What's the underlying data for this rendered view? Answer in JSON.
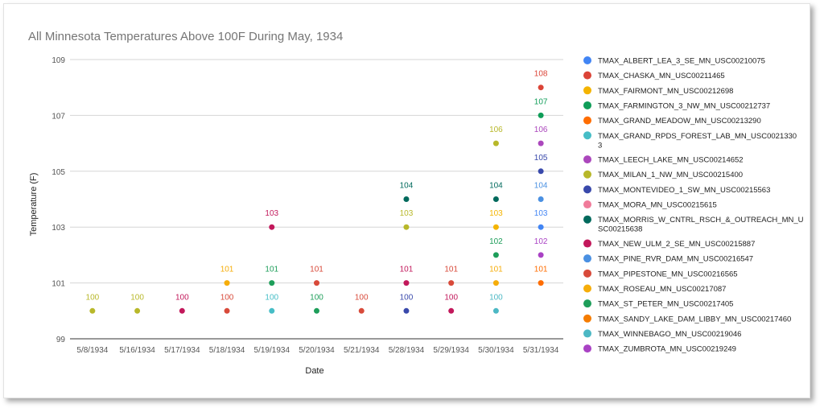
{
  "chart_data": {
    "type": "scatter",
    "title": "All Minnesota Temperatures Above 100F During  May, 1934",
    "xlabel": "Date",
    "ylabel": "Temperature (F)",
    "ylim": [
      99,
      109
    ],
    "yticks": [
      "99",
      "101",
      "103",
      "105",
      "107",
      "109"
    ],
    "grid": true,
    "legend_position": "right",
    "categories": [
      "5/8/1934",
      "5/16/1934",
      "5/17/1934",
      "5/18/1934",
      "5/19/1934",
      "5/20/1934",
      "5/21/1934",
      "5/28/1934",
      "5/29/1934",
      "5/30/1934",
      "5/31/1934"
    ],
    "series": [
      {
        "name": "TMAX_ALBERT_LEA_3_SE_MN_USC00210075",
        "color": "#4285f4",
        "points": [
          {
            "x": "5/31/1934",
            "y": 103
          }
        ]
      },
      {
        "name": "TMAX_CHASKA_MN_USC00211465",
        "color": "#db4437",
        "points": [
          {
            "x": "5/31/1934",
            "y": 108
          }
        ]
      },
      {
        "name": "TMAX_FAIRMONT_MN_USC00212698",
        "color": "#f4b400",
        "points": [
          {
            "x": "5/30/1934",
            "y": 103
          }
        ]
      },
      {
        "name": "TMAX_FARMINGTON_3_NW_MN_USC00212737",
        "color": "#0f9d58",
        "points": [
          {
            "x": "5/31/1934",
            "y": 107
          }
        ]
      },
      {
        "name": "TMAX_GRAND_MEADOW_MN_USC00213290",
        "color": "#ff6d00",
        "points": [
          {
            "x": "5/31/1934",
            "y": 101
          }
        ]
      },
      {
        "name": "TMAX_GRAND_RPDS_FOREST_LAB_MN_USC00213303",
        "color": "#46bdc6",
        "points": [
          {
            "x": "5/19/1934",
            "y": 100
          }
        ]
      },
      {
        "name": "TMAX_LEECH_LAKE_MN_USC00214652",
        "color": "#ab47bc",
        "points": [
          {
            "x": "5/31/1934",
            "y": 106
          }
        ]
      },
      {
        "name": "TMAX_MILAN_1_NW_MN_USC00215400",
        "color": "#b8b82a",
        "points": [
          {
            "x": "5/8/1934",
            "y": 100
          },
          {
            "x": "5/16/1934",
            "y": 100
          },
          {
            "x": "5/28/1934",
            "y": 103
          },
          {
            "x": "5/30/1934",
            "y": 106
          }
        ]
      },
      {
        "name": "TMAX_MONTEVIDEO_1_SW_MN_USC00215563",
        "color": "#3949ab",
        "points": [
          {
            "x": "5/28/1934",
            "y": 100
          },
          {
            "x": "5/31/1934",
            "y": 105
          }
        ]
      },
      {
        "name": "TMAX_MORA_MN_USC00215615",
        "color": "#f07b9a",
        "points": []
      },
      {
        "name": "TMAX_MORRIS_W_CNTRL_RSCH_&_OUTREACH_MN_USC00215638",
        "color": "#00695c",
        "points": [
          {
            "x": "5/28/1934",
            "y": 104
          },
          {
            "x": "5/30/1934",
            "y": 104
          }
        ]
      },
      {
        "name": "TMAX_NEW_ULM_2_SE_MN_USC00215887",
        "color": "#c2185b",
        "points": [
          {
            "x": "5/17/1934",
            "y": 100
          },
          {
            "x": "5/19/1934",
            "y": 103
          },
          {
            "x": "5/28/1934",
            "y": 101
          },
          {
            "x": "5/29/1934",
            "y": 100
          }
        ]
      },
      {
        "name": "TMAX_PINE_RVR_DAM_MN_USC00216547",
        "color": "#4a90e2",
        "points": [
          {
            "x": "5/31/1934",
            "y": 104
          }
        ]
      },
      {
        "name": "TMAX_PIPESTONE_MN_USC00216565",
        "color": "#d84a3a",
        "points": [
          {
            "x": "5/18/1934",
            "y": 100
          },
          {
            "x": "5/20/1934",
            "y": 101
          },
          {
            "x": "5/21/1934",
            "y": 100
          },
          {
            "x": "5/29/1934",
            "y": 101
          }
        ]
      },
      {
        "name": "TMAX_ROSEAU_MN_USC00217087",
        "color": "#f6ad0a",
        "points": [
          {
            "x": "5/18/1934",
            "y": 101
          },
          {
            "x": "5/30/1934",
            "y": 101
          }
        ]
      },
      {
        "name": "TMAX_ST_PETER_MN_USC00217405",
        "color": "#1e9e5a",
        "points": [
          {
            "x": "5/19/1934",
            "y": 101
          },
          {
            "x": "5/20/1934",
            "y": 100
          },
          {
            "x": "5/30/1934",
            "y": 102
          }
        ]
      },
      {
        "name": "TMAX_SANDY_LAKE_DAM_LIBBY_MN_USC00217460",
        "color": "#f57c00",
        "points": []
      },
      {
        "name": "TMAX_WINNEBAGO_MN_USC00219046",
        "color": "#4cb8c4",
        "points": [
          {
            "x": "5/30/1934",
            "y": 100
          }
        ]
      },
      {
        "name": "TMAX_ZUMBROTA_MN_USC00219249",
        "color": "#a942c4",
        "points": [
          {
            "x": "5/31/1934",
            "y": 102
          }
        ]
      }
    ]
  }
}
